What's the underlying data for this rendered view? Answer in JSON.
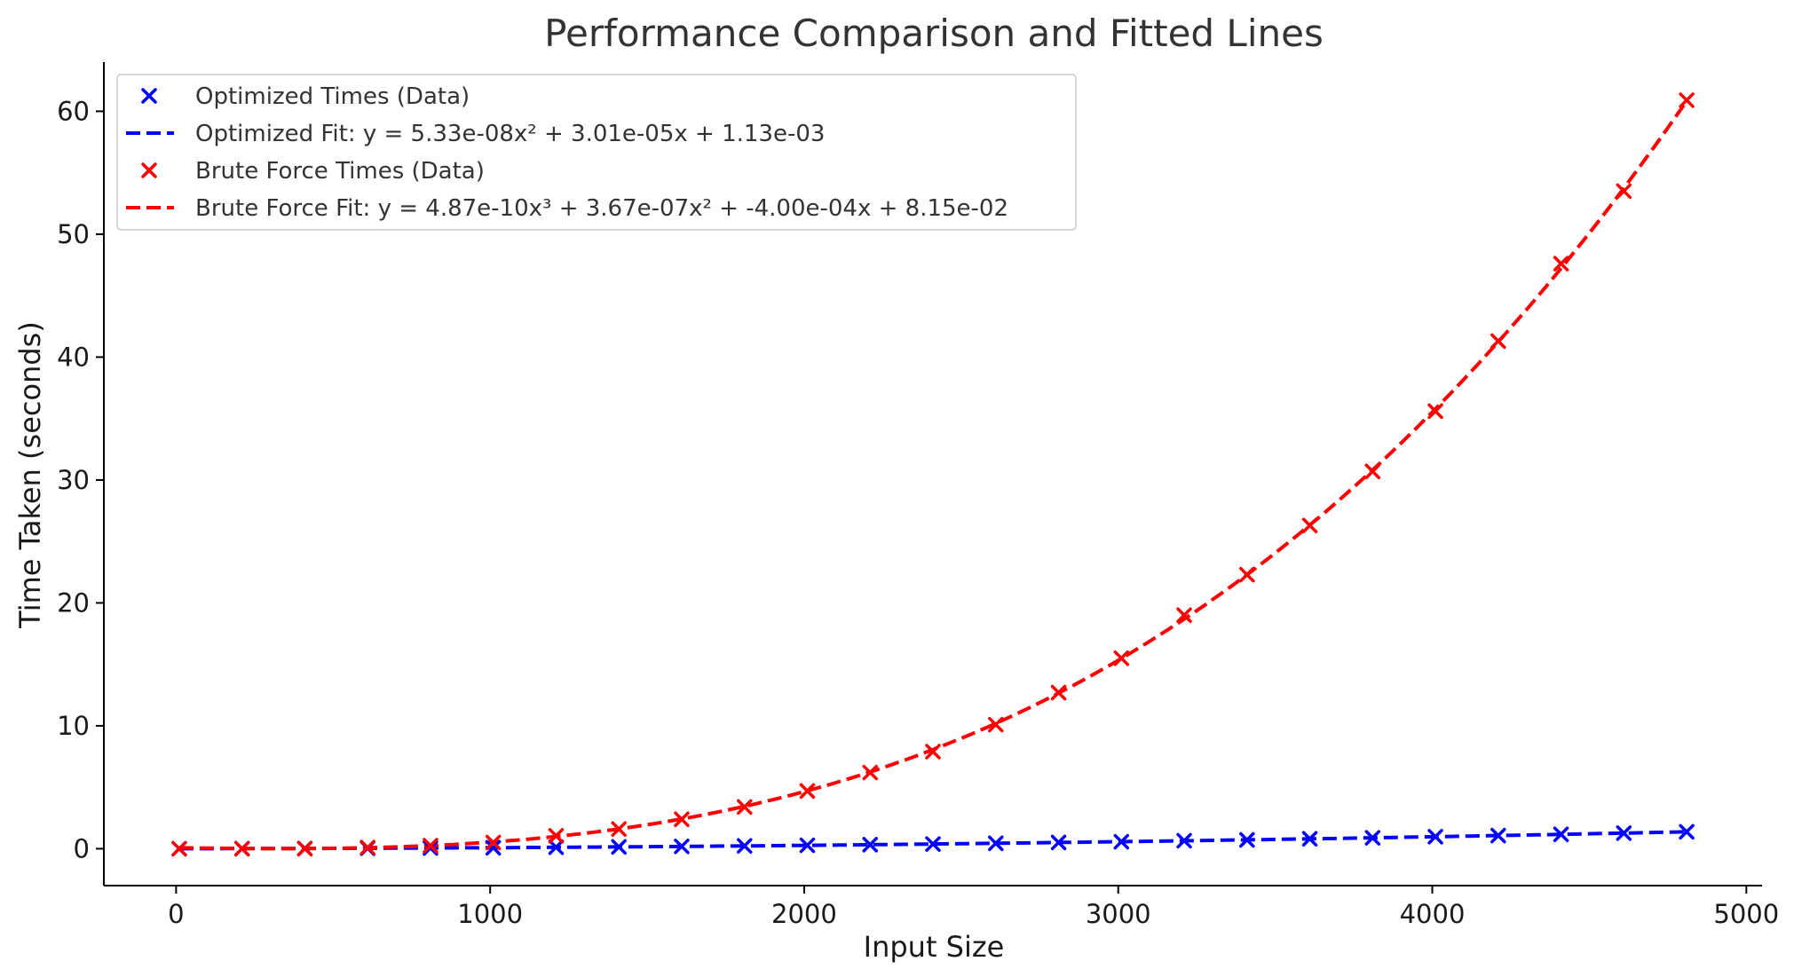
{
  "chart_data": {
    "type": "scatter",
    "title": "Performance Comparison and Fitted Lines",
    "xlabel": "Input Size",
    "ylabel": "Time Taken (seconds)",
    "xlim": [
      -230,
      5050
    ],
    "ylim": [
      -3,
      64
    ],
    "xticks": [
      0,
      1000,
      2000,
      3000,
      4000,
      5000
    ],
    "yticks": [
      0,
      10,
      20,
      30,
      40,
      50,
      60
    ],
    "grid": false,
    "legend_position": "top-left",
    "series": [
      {
        "name": "Optimized Times (Data)",
        "kind": "scatter",
        "marker": "x",
        "color": "#0000ff",
        "x": [
          10,
          210,
          410,
          610,
          810,
          1010,
          1210,
          1410,
          1610,
          1810,
          2010,
          2210,
          2410,
          2610,
          2810,
          3010,
          3210,
          3410,
          3610,
          3810,
          4010,
          4210,
          4410,
          4610,
          4810
        ],
        "y": [
          0.0,
          0.01,
          0.02,
          0.04,
          0.06,
          0.08,
          0.12,
          0.15,
          0.19,
          0.23,
          0.28,
          0.33,
          0.38,
          0.44,
          0.51,
          0.57,
          0.65,
          0.72,
          0.81,
          0.89,
          0.98,
          1.07,
          1.17,
          1.27,
          1.38
        ]
      },
      {
        "name": "Optimized Fit: y = 5.33e-08x² + 3.01e-05x + 1.13e-03",
        "kind": "line",
        "dash": true,
        "color": "#0000ff",
        "coef": [
          5.33e-08,
          3.01e-05,
          0.00113
        ],
        "x_range": [
          10,
          4810
        ]
      },
      {
        "name": "Brute Force Times (Data)",
        "kind": "scatter",
        "marker": "x",
        "color": "#ff0000",
        "x": [
          10,
          210,
          410,
          610,
          810,
          1010,
          1210,
          1410,
          1610,
          1810,
          2010,
          2210,
          2410,
          2610,
          2810,
          3010,
          3210,
          3410,
          3610,
          3810,
          4010,
          4210,
          4410,
          4610,
          4810
        ],
        "y": [
          0.0,
          0.0,
          0.0,
          0.1,
          0.25,
          0.5,
          1.05,
          1.6,
          2.4,
          3.4,
          4.7,
          6.2,
          7.9,
          10.1,
          12.7,
          15.5,
          19.0,
          22.3,
          26.3,
          30.7,
          35.6,
          41.3,
          47.6,
          53.5,
          60.9
        ]
      },
      {
        "name": "Brute Force Fit: y = 4.87e-10x³ + 3.67e-07x² + -4.00e-04x + 8.15e-02",
        "kind": "line",
        "dash": true,
        "color": "#ff0000",
        "coef": [
          4.87e-10,
          3.67e-07,
          -0.0004,
          0.0815
        ],
        "x_range": [
          10,
          4810
        ]
      }
    ]
  }
}
